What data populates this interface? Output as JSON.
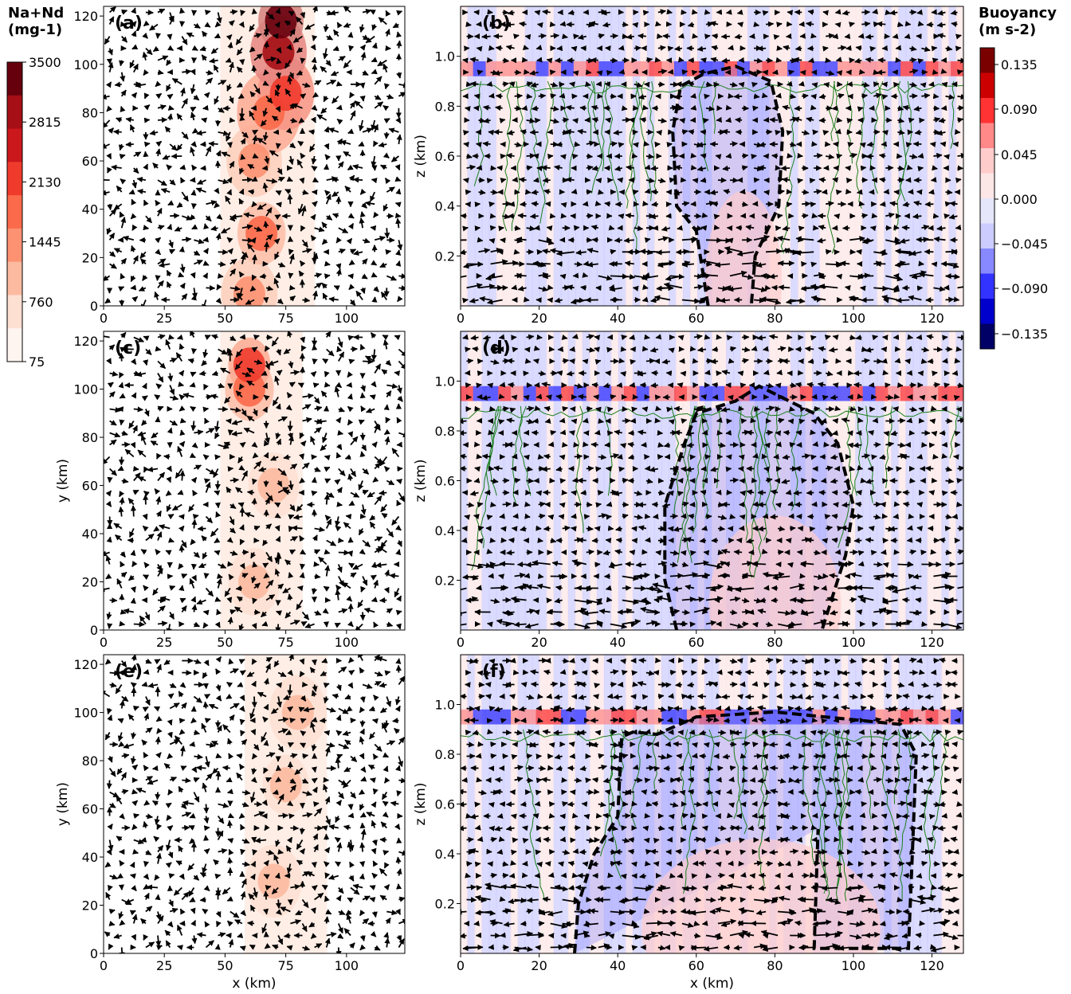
{
  "colorbar_left": {
    "title_line1": "Na+Nd",
    "title_line2": "(mg-1)",
    "ticks": [
      "3500",
      "2815",
      "2130",
      "1445",
      "760",
      "75"
    ],
    "min": 75,
    "max": 3500,
    "colors": [
      "#fff5f0",
      "#fee0d2",
      "#fcbba1",
      "#fc9272",
      "#fb6a4a",
      "#ef3b2c",
      "#cb181d",
      "#a50f15",
      "#67000d"
    ]
  },
  "colorbar_right": {
    "title_line1": "Buoyancy",
    "title_line2": "(m s-2)",
    "ticks": [
      "0.135",
      "0.090",
      "0.045",
      "0.000",
      "−0.045",
      "−0.090",
      "−0.135"
    ],
    "min": -0.16,
    "max": 0.16,
    "colors": [
      "#000066",
      "#0000cc",
      "#3333ff",
      "#8888ff",
      "#ccccff",
      "#e6e6fa",
      "#fde6e6",
      "#ffcccc",
      "#ff8888",
      "#ff3333",
      "#cc0000",
      "#7a0000"
    ]
  },
  "chart_data": [
    {
      "type": "heatmap",
      "panel": "(a)",
      "field": "Na+Nd (mg-1) with horizontal wind vectors",
      "xlabel": "",
      "ylabel": "",
      "xlim": [
        0,
        124
      ],
      "ylim": [
        0,
        124
      ],
      "xticks": [
        "0",
        "25",
        "50",
        "75",
        "100"
      ],
      "yticks": [
        "0",
        "20",
        "40",
        "60",
        "80",
        "100",
        "120"
      ],
      "plume": [
        {
          "x": 60,
          "y": 5,
          "value": 700
        },
        {
          "x": 65,
          "y": 30,
          "value": 900
        },
        {
          "x": 62,
          "y": 60,
          "value": 700
        },
        {
          "x": 68,
          "y": 80,
          "value": 1100
        },
        {
          "x": 75,
          "y": 88,
          "value": 1500
        },
        {
          "x": 72,
          "y": 105,
          "value": 2000
        },
        {
          "x": 73,
          "y": 118,
          "value": 2400
        }
      ]
    },
    {
      "type": "heatmap",
      "panel": "(b)",
      "field": "Buoyancy (m s-2) with vertical cross-section wind vectors",
      "xlabel": "",
      "ylabel": "z (km)",
      "xlim": [
        0,
        128
      ],
      "ylim": [
        0,
        1.2
      ],
      "xticks": [
        "0",
        "20",
        "40",
        "60",
        "80",
        "100",
        "120"
      ],
      "yticks": [
        "0.2",
        "0.4",
        "0.6",
        "0.8",
        "1.0"
      ],
      "cold_pool_contour_x": [
        63,
        60,
        55,
        54,
        56,
        62,
        70,
        79,
        82,
        81,
        78,
        75,
        74
      ],
      "cold_pool_contour_z": [
        0.0,
        0.3,
        0.4,
        0.7,
        0.88,
        0.93,
        0.96,
        0.9,
        0.7,
        0.4,
        0.3,
        0.2,
        0.0
      ],
      "inversion_height_km": 0.95
    },
    {
      "type": "heatmap",
      "panel": "(c)",
      "field": "Na+Nd (mg-1) with horizontal wind vectors",
      "xlabel": "",
      "ylabel": "y (km)",
      "xlim": [
        0,
        124
      ],
      "ylim": [
        0,
        124
      ],
      "xticks": [
        "0",
        "25",
        "50",
        "75",
        "100"
      ],
      "yticks": [
        "0",
        "20",
        "40",
        "60",
        "80",
        "100",
        "120"
      ],
      "plume": [
        {
          "x": 62,
          "y": 20,
          "value": 300
        },
        {
          "x": 70,
          "y": 60,
          "value": 300
        },
        {
          "x": 60,
          "y": 100,
          "value": 1000
        },
        {
          "x": 60,
          "y": 110,
          "value": 1400
        }
      ]
    },
    {
      "type": "heatmap",
      "panel": "(d)",
      "field": "Buoyancy (m s-2) with vertical cross-section wind vectors",
      "xlabel": "",
      "ylabel": "z (km)",
      "xlim": [
        0,
        128
      ],
      "ylim": [
        0,
        1.2
      ],
      "xticks": [
        "0",
        "20",
        "40",
        "60",
        "80",
        "100",
        "120"
      ],
      "yticks": [
        "0.2",
        "0.4",
        "0.6",
        "0.8",
        "1.0"
      ],
      "cold_pool_contour_x": [
        55,
        52,
        52,
        57,
        60,
        70,
        76,
        90,
        96,
        100,
        98,
        95,
        92
      ],
      "cold_pool_contour_z": [
        0.0,
        0.2,
        0.5,
        0.75,
        0.87,
        0.92,
        0.98,
        0.87,
        0.75,
        0.5,
        0.3,
        0.15,
        0.0
      ],
      "inversion_height_km": 0.95
    },
    {
      "type": "heatmap",
      "panel": "(e)",
      "field": "Na+Nd (mg-1) with horizontal wind vectors",
      "xlabel": "x (km)",
      "ylabel": "y (km)",
      "xlim": [
        0,
        124
      ],
      "ylim": [
        0,
        124
      ],
      "xticks": [
        "0",
        "25",
        "50",
        "75",
        "100"
      ],
      "yticks": [
        "0",
        "20",
        "40",
        "60",
        "80",
        "100",
        "120"
      ],
      "plume": [
        {
          "x": 70,
          "y": 30,
          "value": 200
        },
        {
          "x": 75,
          "y": 70,
          "value": 200
        },
        {
          "x": 80,
          "y": 100,
          "value": 200
        }
      ]
    },
    {
      "type": "heatmap",
      "panel": "(f)",
      "field": "Buoyancy (m s-2) with vertical cross-section wind vectors",
      "xlabel": "x (km)",
      "ylabel": "z (km)",
      "xlim": [
        0,
        128
      ],
      "ylim": [
        0,
        1.2
      ],
      "xticks": [
        "0",
        "20",
        "40",
        "60",
        "80",
        "100",
        "120"
      ],
      "yticks": [
        "0.2",
        "0.4",
        "0.6",
        "0.8",
        "1.0"
      ],
      "cold_pool_contour_x": [
        29,
        30,
        34,
        40,
        41,
        44,
        50,
        60,
        80,
        112,
        116,
        115,
        114,
        90,
        91
      ],
      "cold_pool_contour_z": [
        0.0,
        0.2,
        0.4,
        0.55,
        0.87,
        0.89,
        0.88,
        0.95,
        0.97,
        0.92,
        0.8,
        0.4,
        0.02,
        0.02,
        0.5
      ],
      "inversion_height_km": 0.95
    }
  ]
}
